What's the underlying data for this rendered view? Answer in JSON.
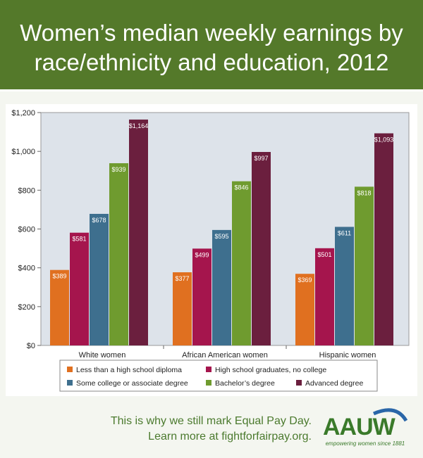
{
  "header": {
    "title_line1": "Women’s median weekly earnings by",
    "title_line2": "race/ethnicity and education, 2012"
  },
  "chart_data": {
    "type": "bar",
    "categories": [
      "White women",
      "African American women",
      "Hispanic women"
    ],
    "series": [
      {
        "name": "Less than a high school diploma",
        "color": "#e07020",
        "values": [
          389,
          377,
          369
        ]
      },
      {
        "name": "High school graduates, no college",
        "color": "#a5154d",
        "values": [
          581,
          499,
          501
        ]
      },
      {
        "name": "Some college or associate degree",
        "color": "#3e6f8e",
        "values": [
          678,
          595,
          611
        ]
      },
      {
        "name": "Bachelor’s degree",
        "color": "#6f9b2f",
        "values": [
          939,
          846,
          818
        ]
      },
      {
        "name": "Advanced degree",
        "color": "#6b1f3e",
        "values": [
          1164,
          997,
          1093
        ]
      }
    ],
    "value_labels": [
      [
        "$389",
        "$581",
        "$678",
        "$939",
        "$1,164"
      ],
      [
        "$377",
        "$499",
        "$595",
        "$846",
        "$997"
      ],
      [
        "$369",
        "$501",
        "$611",
        "$818",
        "$1,093"
      ]
    ],
    "y_ticks": [
      0,
      200,
      400,
      600,
      800,
      1000,
      1200
    ],
    "y_tick_labels": [
      "$0",
      "$200",
      "$400",
      "$600",
      "$800",
      "$1,000",
      "$1,200"
    ],
    "ylim": [
      0,
      1200
    ],
    "grid": false,
    "legend_position": "bottom",
    "plot_background": "#dde3ea",
    "title": "",
    "xlabel": "",
    "ylabel": ""
  },
  "footer": {
    "line1": "This is why we still mark Equal Pay Day.",
    "line2": "Learn more at fightforfairpay.org."
  },
  "logo": {
    "text": "AAUW",
    "tagline": "empowering women since 1881"
  },
  "colors": {
    "header_bg": "#54792a",
    "footer_text": "#4b7a2e"
  }
}
